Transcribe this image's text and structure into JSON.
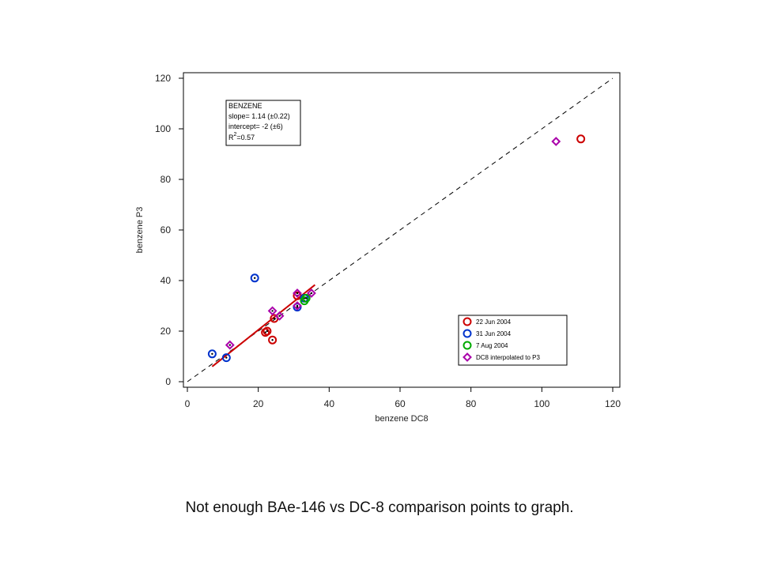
{
  "caption": "Not enough BAe-146 vs DC-8 comparison points to graph.",
  "chart_data": {
    "type": "scatter",
    "xlabel": "benzene DC8",
    "ylabel": "benzene P3",
    "xlim": [
      0,
      120
    ],
    "ylim": [
      0,
      120
    ],
    "xticks": [
      0,
      20,
      40,
      60,
      80,
      100,
      120
    ],
    "yticks": [
      0,
      20,
      40,
      60,
      80,
      100,
      120
    ],
    "grid": false,
    "legend_position": "bottom-right",
    "stats_box": {
      "title": "BENZENE",
      "slope_label": "slope= 1.14 (±0.22)",
      "intercept_label": "intercept= -2 (±6)",
      "r2_base": "R",
      "r2_sup": "2",
      "r2_value": "=0.57",
      "slope": 1.14,
      "intercept": -2,
      "r2": 0.57
    },
    "one_to_one_line": {
      "x": [
        0,
        120
      ],
      "y": [
        0,
        120
      ],
      "style": "dashed",
      "color": "#000000"
    },
    "fit_line": {
      "x": [
        7,
        36
      ],
      "y": [
        6,
        38.3
      ],
      "color": "#cc0000"
    },
    "series": [
      {
        "name": "22 Jun 2004",
        "marker": "circle",
        "color": "#cc0000",
        "x": [
          111,
          22,
          22.5,
          24,
          24.5,
          31
        ],
        "y": [
          96,
          19.5,
          20,
          16.5,
          25,
          34
        ]
      },
      {
        "name": "31 Jun 2004",
        "marker": "circle",
        "color": "#0033cc",
        "x": [
          7,
          11,
          19,
          31,
          33
        ],
        "y": [
          11,
          9.5,
          41,
          29.5,
          33
        ]
      },
      {
        "name": "7 Aug 2004",
        "marker": "circle",
        "color": "#00aa00",
        "x": [
          33,
          33.5
        ],
        "y": [
          32,
          33
        ]
      },
      {
        "name": "DC8 interpolated to P3",
        "marker": "diamond",
        "color": "#aa00aa",
        "x": [
          104,
          12,
          24,
          26,
          31,
          31,
          35
        ],
        "y": [
          95,
          14.5,
          28,
          26,
          35,
          30,
          35
        ]
      }
    ]
  }
}
